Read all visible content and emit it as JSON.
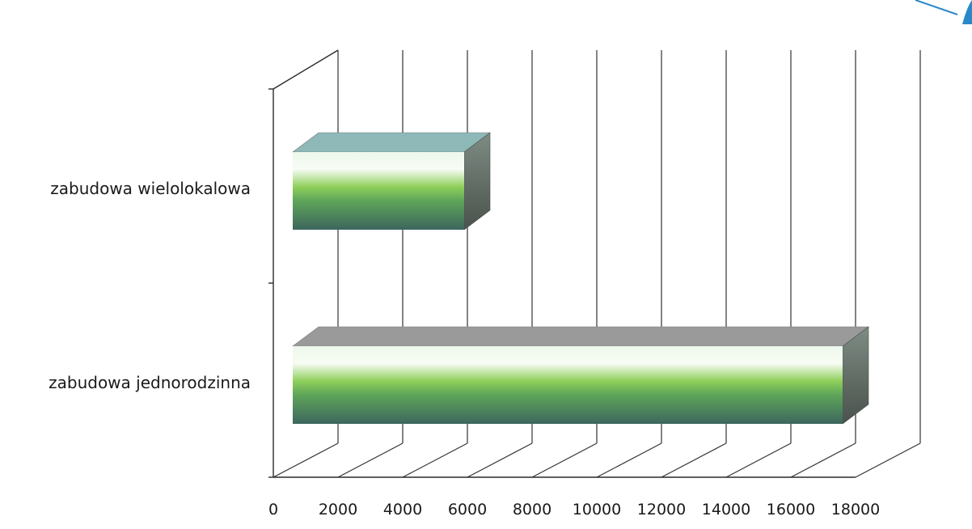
{
  "chart_data": {
    "type": "bar",
    "orientation": "horizontal",
    "style": "3d",
    "categories": [
      "zabudowa wielolokalowa",
      "zabudowa jednorodzinna"
    ],
    "values": [
      5300,
      17000
    ],
    "xlim": [
      0,
      18000
    ],
    "xticks": [
      "0",
      "2000",
      "4000",
      "6000",
      "8000",
      "10000",
      "12000",
      "14000",
      "16000",
      "18000"
    ],
    "grid": true,
    "legend": "none",
    "title": "",
    "xlabel": "",
    "ylabel": "",
    "colors": {
      "bar_top_light": "#f4fbf0",
      "bar_mid_green": "#7cc04a",
      "bar_dark": "#3e6a5c",
      "wielolokalowa_top": "#8fb8b8",
      "jednorodzinna_top": "#9a9a9a",
      "side": "#5a625a"
    }
  }
}
